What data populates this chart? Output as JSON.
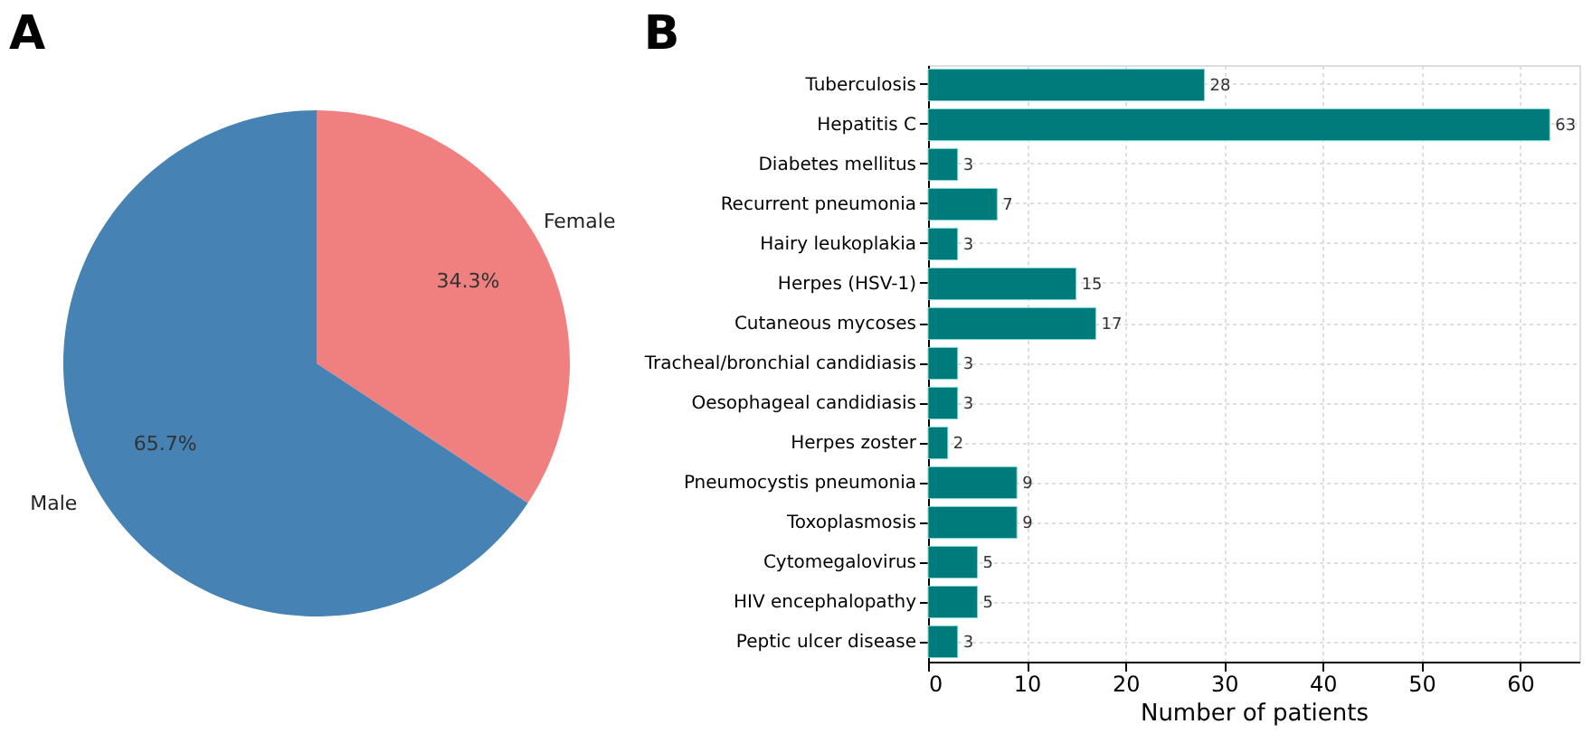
{
  "chart_data": [
    {
      "type": "pie",
      "title": "A",
      "categories": [
        "Female",
        "Male"
      ],
      "values": [
        34.3,
        65.7
      ],
      "colors": [
        "#f08080",
        "#4682b4"
      ],
      "value_labels": [
        "34.3%",
        "65.7%"
      ]
    },
    {
      "type": "bar",
      "title": "B",
      "orientation": "horizontal",
      "xlabel": "Number of patients",
      "categories": [
        "Tuberculosis",
        "Hepatitis C",
        "Diabetes mellitus",
        "Recurrent pneumonia",
        "Hairy leukoplakia",
        "Herpes (HSV-1)",
        "Cutaneous mycoses",
        "Tracheal/bronchial candidiasis",
        "Oesophageal candidiasis",
        "Herpes zoster",
        "Pneumocystis pneumonia",
        "Toxoplasmosis",
        "Cytomegalovirus",
        "HIV encephalopathy",
        "Peptic ulcer disease"
      ],
      "values": [
        28,
        63,
        3,
        7,
        3,
        15,
        17,
        3,
        3,
        2,
        9,
        9,
        5,
        5,
        3
      ],
      "color": "#007b7b",
      "xlim": [
        0,
        66
      ],
      "xticks": [
        0,
        10,
        20,
        30,
        40,
        50,
        60
      ],
      "grid": true,
      "data_labels": true
    }
  ]
}
